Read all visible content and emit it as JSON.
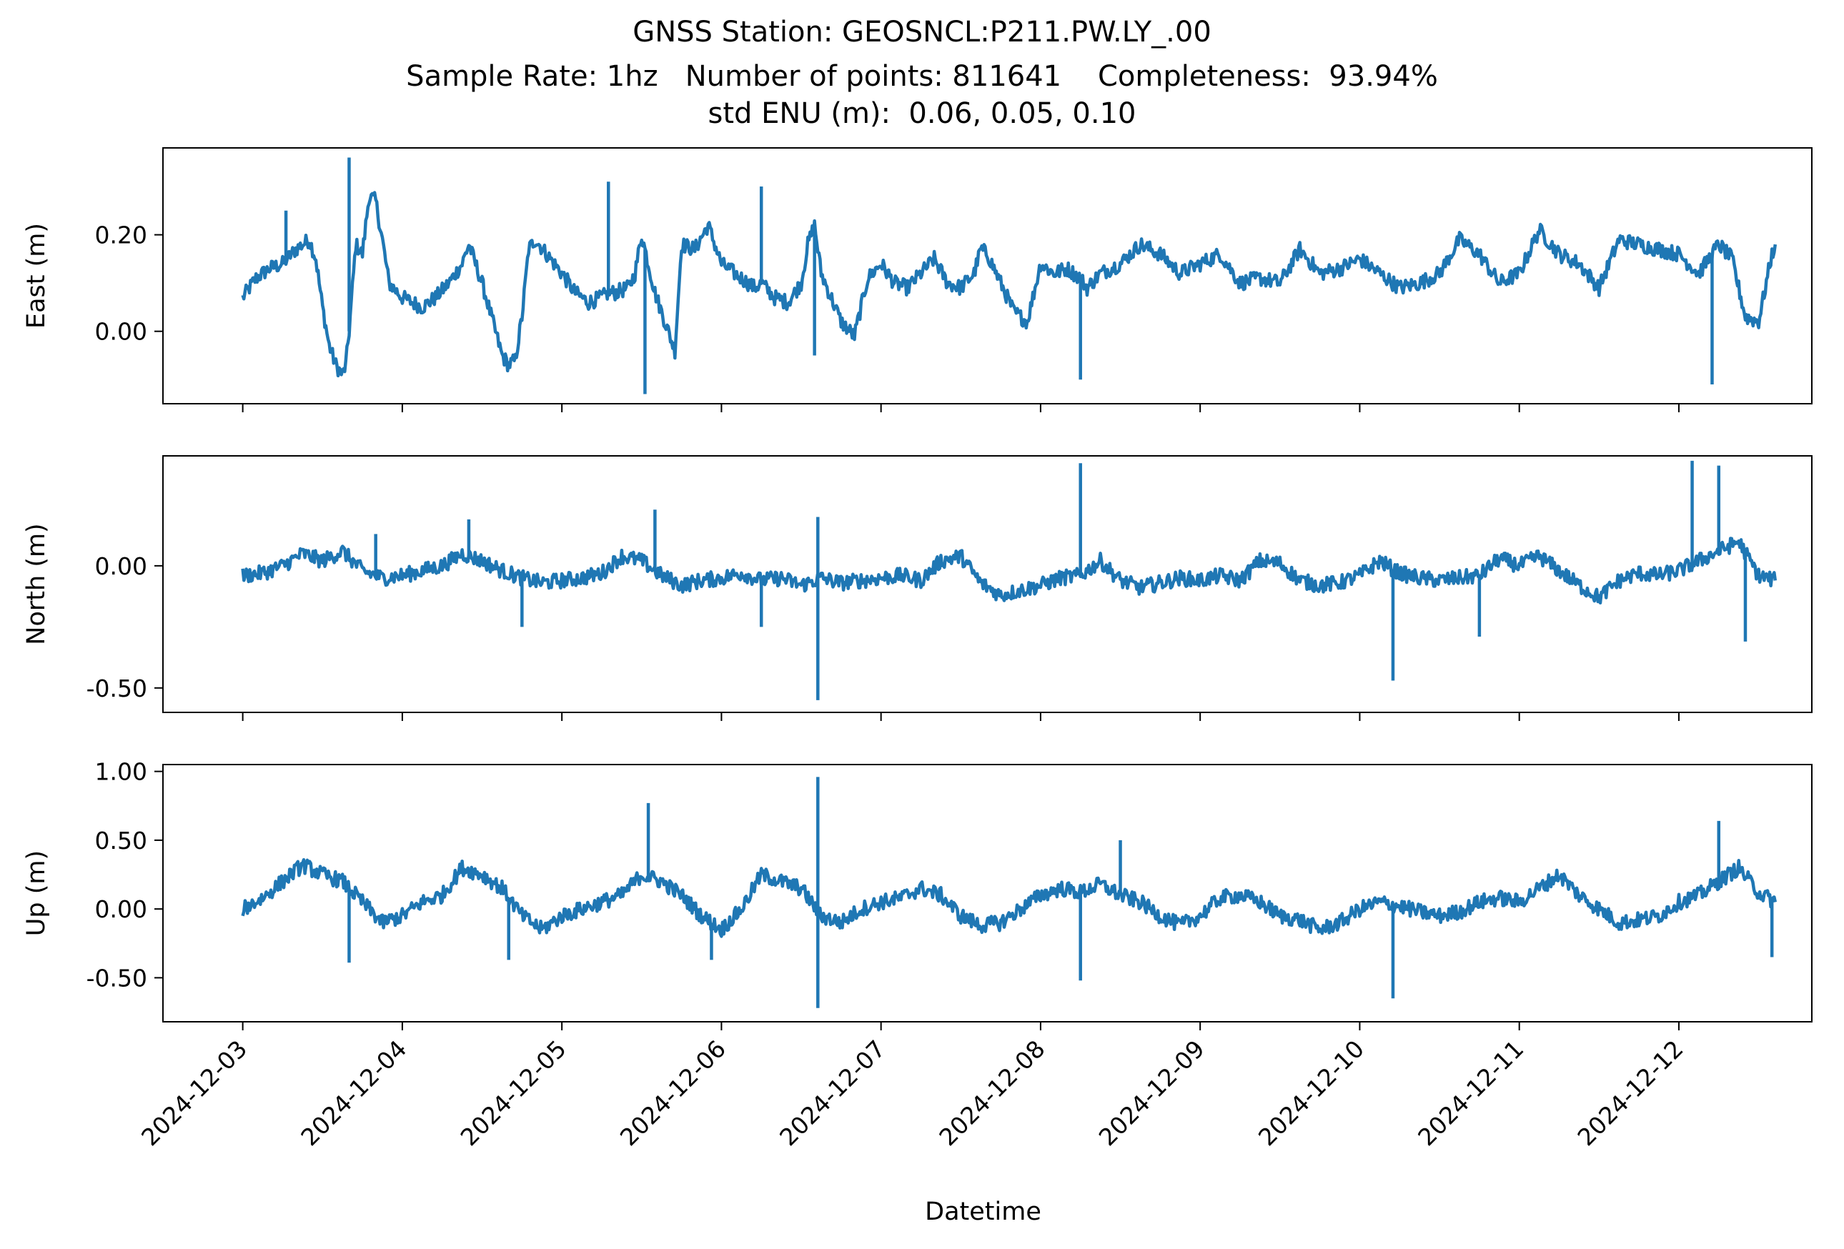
{
  "figure": {
    "title_lines": [
      "GNSS Station: GEOSNCL:P211.PW.LY_.00",
      "Sample Rate: 1hz   Number of points: 811641    Completeness:  93.94%",
      "std ENU (m):  0.06, 0.05, 0.10"
    ],
    "xlabel": "Datetime",
    "line_color": "#1f77b4"
  },
  "chart_data": {
    "type": "line",
    "x_label": "Datetime",
    "x_ticks": [
      "2024-12-03",
      "2024-12-04",
      "2024-12-05",
      "2024-12-06",
      "2024-12-07",
      "2024-12-08",
      "2024-12-09",
      "2024-12-10",
      "2024-12-11",
      "2024-12-12"
    ],
    "xlim": [
      "2024-12-02T12:00",
      "2024-12-12T20:00"
    ],
    "data_range": [
      "2024-12-03T00:00",
      "2024-12-12T14:30"
    ],
    "panels": [
      {
        "ylabel": "East (m)",
        "ylim": [
          -0.15,
          0.38
        ],
        "yticks": [
          0.0,
          0.2
        ],
        "ytick_labels": [
          "0.00",
          "0.20"
        ],
        "series": [
          {
            "x": [
              "2024-12-03T00:00",
              "2024-12-03T02:00",
              "2024-12-03T04:00",
              "2024-12-03T06:00",
              "2024-12-03T08:00",
              "2024-12-03T10:00",
              "2024-12-03T11:00",
              "2024-12-03T12:00",
              "2024-12-03T13:00",
              "2024-12-03T14:00",
              "2024-12-03T15:00",
              "2024-12-03T15:30",
              "2024-12-03T16:00",
              "2024-12-03T17:00",
              "2024-12-03T18:00",
              "2024-12-03T19:00",
              "2024-12-03T20:00",
              "2024-12-03T21:00",
              "2024-12-03T22:00",
              "2024-12-04T00:00",
              "2024-12-04T03:00",
              "2024-12-04T05:00",
              "2024-12-04T07:00",
              "2024-12-04T09:00",
              "2024-12-04T10:00",
              "2024-12-04T12:00",
              "2024-12-04T14:00",
              "2024-12-04T15:00",
              "2024-12-04T16:00",
              "2024-12-04T17:00",
              "2024-12-04T18:00",
              "2024-12-04T19:00",
              "2024-12-04T20:00",
              "2024-12-05T00:00",
              "2024-12-05T02:00",
              "2024-12-05T04:00",
              "2024-12-05T06:00",
              "2024-12-05T07:00",
              "2024-12-05T08:00",
              "2024-12-05T10:00",
              "2024-12-05T11:00",
              "2024-12-05T12:00",
              "2024-12-05T13:00",
              "2024-12-05T14:00",
              "2024-12-05T15:00",
              "2024-12-05T16:00",
              "2024-12-05T17:00",
              "2024-12-05T18:00",
              "2024-12-05T20:00",
              "2024-12-05T22:00",
              "2024-12-06T00:00",
              "2024-12-06T03:00",
              "2024-12-06T05:00",
              "2024-12-06T06:00",
              "2024-12-06T08:00",
              "2024-12-06T10:00",
              "2024-12-06T12:00",
              "2024-12-06T13:00",
              "2024-12-06T14:00",
              "2024-12-06T15:00",
              "2024-12-06T18:00",
              "2024-12-06T20:00",
              "2024-12-06T22:00",
              "2024-12-07T00:00",
              "2024-12-07T02:00",
              "2024-12-07T04:00",
              "2024-12-07T06:00",
              "2024-12-07T08:00",
              "2024-12-07T10:00",
              "2024-12-07T12:00",
              "2024-12-07T14:00",
              "2024-12-07T15:00",
              "2024-12-07T16:00",
              "2024-12-07T18:00",
              "2024-12-07T20:00",
              "2024-12-07T22:00",
              "2024-12-08T00:00",
              "2024-12-08T02:00",
              "2024-12-08T04:00",
              "2024-12-08T06:00",
              "2024-12-08T07:00",
              "2024-12-08T09:00",
              "2024-12-08T12:00",
              "2024-12-08T15:00",
              "2024-12-08T18:00",
              "2024-12-08T21:00",
              "2024-12-09T00:00",
              "2024-12-09T03:00",
              "2024-12-09T06:00",
              "2024-12-09T09:00",
              "2024-12-09T12:00",
              "2024-12-09T15:00",
              "2024-12-09T18:00",
              "2024-12-09T21:00",
              "2024-12-10T00:00",
              "2024-12-10T03:00",
              "2024-12-10T06:00",
              "2024-12-10T09:00",
              "2024-12-10T12:00",
              "2024-12-10T15:00",
              "2024-12-10T18:00",
              "2024-12-10T21:00",
              "2024-12-11T00:00",
              "2024-12-11T03:00",
              "2024-12-11T06:00",
              "2024-12-11T09:00",
              "2024-12-11T12:00",
              "2024-12-11T15:00",
              "2024-12-11T18:00",
              "2024-12-11T21:00",
              "2024-12-12T00:00",
              "2024-12-12T03:00",
              "2024-12-12T06:00",
              "2024-12-12T08:00",
              "2024-12-12T10:00",
              "2024-12-12T12:00",
              "2024-12-12T14:00",
              "2024-12-12T14:30"
            ],
            "y": [
              0.07,
              0.11,
              0.13,
              0.14,
              0.17,
              0.19,
              0.15,
              0.05,
              -0.03,
              -0.07,
              -0.09,
              -0.07,
              0.0,
              0.18,
              0.16,
              0.28,
              0.27,
              0.19,
              0.1,
              0.07,
              0.05,
              0.07,
              0.1,
              0.14,
              0.18,
              0.1,
              0.0,
              -0.05,
              -0.07,
              -0.06,
              0.03,
              0.17,
              0.19,
              0.12,
              0.08,
              0.06,
              0.07,
              0.08,
              0.08,
              0.09,
              0.12,
              0.2,
              0.14,
              0.08,
              0.04,
              0.0,
              -0.04,
              0.18,
              0.17,
              0.22,
              0.14,
              0.11,
              0.09,
              0.1,
              0.07,
              0.06,
              0.1,
              0.18,
              0.22,
              0.12,
              0.02,
              -0.01,
              0.11,
              0.14,
              0.1,
              0.09,
              0.12,
              0.15,
              0.1,
              0.09,
              0.12,
              0.17,
              0.16,
              0.1,
              0.04,
              0.02,
              0.14,
              0.12,
              0.13,
              0.11,
              0.09,
              0.12,
              0.14,
              0.18,
              0.16,
              0.12,
              0.14,
              0.16,
              0.1,
              0.11,
              0.1,
              0.17,
              0.12,
              0.13,
              0.15,
              0.12,
              0.09,
              0.1,
              0.12,
              0.19,
              0.16,
              0.1,
              0.12,
              0.21,
              0.16,
              0.14,
              0.09,
              0.19,
              0.18,
              0.17,
              0.16,
              0.12,
              0.18,
              0.15,
              0.03,
              0.02,
              0.16,
              0.18
            ]
          }
        ],
        "spikes": [
          {
            "x": "2024-12-03T06:30",
            "y": 0.25
          },
          {
            "x": "2024-12-03T16:00",
            "y": 0.36
          },
          {
            "x": "2024-12-05T07:00",
            "y": 0.31
          },
          {
            "x": "2024-12-05T12:30",
            "y": -0.13
          },
          {
            "x": "2024-12-06T06:00",
            "y": 0.3
          },
          {
            "x": "2024-12-06T14:00",
            "y": -0.05
          },
          {
            "x": "2024-12-08T06:00",
            "y": -0.1
          },
          {
            "x": "2024-12-12T05:00",
            "y": -0.11
          }
        ]
      },
      {
        "ylabel": "North (m)",
        "ylim": [
          -0.6,
          0.45
        ],
        "yticks": [
          -0.5,
          0.0
        ],
        "ytick_labels": [
          "-0.50",
          "0.00"
        ],
        "series": [
          {
            "x": [
              "2024-12-03T00:00",
              "2024-12-03T03:00",
              "2024-12-03T06:00",
              "2024-12-03T09:00",
              "2024-12-03T12:00",
              "2024-12-03T15:00",
              "2024-12-03T18:00",
              "2024-12-03T21:00",
              "2024-12-04T00:00",
              "2024-12-04T03:00",
              "2024-12-04T06:00",
              "2024-12-04T09:00",
              "2024-12-04T12:00",
              "2024-12-04T15:00",
              "2024-12-04T18:00",
              "2024-12-04T21:00",
              "2024-12-05T00:00",
              "2024-12-05T03:00",
              "2024-12-05T06:00",
              "2024-12-05T09:00",
              "2024-12-05T12:00",
              "2024-12-05T15:00",
              "2024-12-05T18:00",
              "2024-12-05T21:00",
              "2024-12-06T00:00",
              "2024-12-06T03:00",
              "2024-12-06T06:00",
              "2024-12-06T09:00",
              "2024-12-06T12:00",
              "2024-12-06T15:00",
              "2024-12-06T18:00",
              "2024-12-06T21:00",
              "2024-12-07T00:00",
              "2024-12-07T03:00",
              "2024-12-07T06:00",
              "2024-12-07T09:00",
              "2024-12-07T12:00",
              "2024-12-07T15:00",
              "2024-12-07T18:00",
              "2024-12-07T21:00",
              "2024-12-08T00:00",
              "2024-12-08T03:00",
              "2024-12-08T06:00",
              "2024-12-08T09:00",
              "2024-12-08T12:00",
              "2024-12-08T15:00",
              "2024-12-08T18:00",
              "2024-12-08T21:00",
              "2024-12-09T00:00",
              "2024-12-09T03:00",
              "2024-12-09T06:00",
              "2024-12-09T09:00",
              "2024-12-09T12:00",
              "2024-12-09T15:00",
              "2024-12-09T18:00",
              "2024-12-09T21:00",
              "2024-12-10T00:00",
              "2024-12-10T03:00",
              "2024-12-10T06:00",
              "2024-12-10T09:00",
              "2024-12-10T12:00",
              "2024-12-10T15:00",
              "2024-12-10T18:00",
              "2024-12-10T21:00",
              "2024-12-11T00:00",
              "2024-12-11T03:00",
              "2024-12-11T06:00",
              "2024-12-11T09:00",
              "2024-12-11T12:00",
              "2024-12-11T15:00",
              "2024-12-11T18:00",
              "2024-12-11T21:00",
              "2024-12-12T00:00",
              "2024-12-12T03:00",
              "2024-12-12T06:00",
              "2024-12-12T09:00",
              "2024-12-12T12:00",
              "2024-12-12T14:30"
            ],
            "y": [
              -0.04,
              -0.03,
              0.0,
              0.05,
              0.02,
              0.06,
              -0.02,
              -0.05,
              -0.04,
              -0.02,
              0.0,
              0.05,
              0.02,
              -0.02,
              -0.05,
              -0.07,
              -0.06,
              -0.05,
              -0.03,
              0.04,
              0.02,
              -0.04,
              -0.08,
              -0.06,
              -0.05,
              -0.03,
              -0.06,
              -0.05,
              -0.08,
              -0.05,
              -0.07,
              -0.06,
              -0.05,
              -0.04,
              -0.06,
              0.02,
              0.04,
              -0.07,
              -0.12,
              -0.1,
              -0.08,
              -0.05,
              -0.04,
              0.02,
              -0.06,
              -0.09,
              -0.07,
              -0.05,
              -0.06,
              -0.04,
              -0.06,
              0.02,
              0.01,
              -0.06,
              -0.08,
              -0.07,
              -0.04,
              0.02,
              -0.03,
              -0.05,
              -0.06,
              -0.05,
              -0.04,
              0.03,
              0.0,
              0.04,
              -0.02,
              -0.08,
              -0.13,
              -0.06,
              -0.03,
              -0.04,
              -0.02,
              0.02,
              0.06,
              0.1,
              -0.04,
              -0.06
            ]
          }
        ],
        "spikes": [
          {
            "x": "2024-12-03T20:00",
            "y": 0.13
          },
          {
            "x": "2024-12-04T10:00",
            "y": 0.19
          },
          {
            "x": "2024-12-04T18:00",
            "y": -0.25
          },
          {
            "x": "2024-12-05T14:00",
            "y": 0.23
          },
          {
            "x": "2024-12-06T06:00",
            "y": -0.25
          },
          {
            "x": "2024-12-06T14:30",
            "y": -0.55
          },
          {
            "x": "2024-12-06T14:30",
            "y": 0.2
          },
          {
            "x": "2024-12-08T06:00",
            "y": 0.42
          },
          {
            "x": "2024-12-10T05:00",
            "y": -0.47
          },
          {
            "x": "2024-12-10T18:00",
            "y": -0.29
          },
          {
            "x": "2024-12-12T02:00",
            "y": 0.43
          },
          {
            "x": "2024-12-12T06:00",
            "y": 0.41
          },
          {
            "x": "2024-12-12T10:00",
            "y": -0.31
          }
        ]
      },
      {
        "ylabel": "Up (m)",
        "ylim": [
          -0.82,
          1.05
        ],
        "yticks": [
          -0.5,
          0.0,
          0.5,
          1.0
        ],
        "ytick_labels": [
          "-0.50",
          "0.00",
          "0.50",
          "1.00"
        ],
        "series": [
          {
            "x": [
              "2024-12-03T00:00",
              "2024-12-03T03:00",
              "2024-12-03T06:00",
              "2024-12-03T09:00",
              "2024-12-03T12:00",
              "2024-12-03T15:00",
              "2024-12-03T18:00",
              "2024-12-03T21:00",
              "2024-12-04T00:00",
              "2024-12-04T03:00",
              "2024-12-04T06:00",
              "2024-12-04T09:00",
              "2024-12-04T12:00",
              "2024-12-04T15:00",
              "2024-12-04T18:00",
              "2024-12-04T21:00",
              "2024-12-05T00:00",
              "2024-12-05T03:00",
              "2024-12-05T06:00",
              "2024-12-05T09:00",
              "2024-12-05T12:00",
              "2024-12-05T15:00",
              "2024-12-05T18:00",
              "2024-12-05T21:00",
              "2024-12-06T00:00",
              "2024-12-06T03:00",
              "2024-12-06T06:00",
              "2024-12-06T09:00",
              "2024-12-06T12:00",
              "2024-12-06T15:00",
              "2024-12-06T18:00",
              "2024-12-06T21:00",
              "2024-12-07T00:00",
              "2024-12-07T03:00",
              "2024-12-07T06:00",
              "2024-12-07T09:00",
              "2024-12-07T12:00",
              "2024-12-07T15:00",
              "2024-12-07T18:00",
              "2024-12-07T21:00",
              "2024-12-08T00:00",
              "2024-12-08T03:00",
              "2024-12-08T06:00",
              "2024-12-08T09:00",
              "2024-12-08T12:00",
              "2024-12-08T15:00",
              "2024-12-08T18:00",
              "2024-12-08T21:00",
              "2024-12-09T00:00",
              "2024-12-09T03:00",
              "2024-12-09T06:00",
              "2024-12-09T09:00",
              "2024-12-09T12:00",
              "2024-12-09T15:00",
              "2024-12-09T18:00",
              "2024-12-09T21:00",
              "2024-12-10T00:00",
              "2024-12-10T03:00",
              "2024-12-10T06:00",
              "2024-12-10T09:00",
              "2024-12-10T12:00",
              "2024-12-10T15:00",
              "2024-12-10T18:00",
              "2024-12-10T21:00",
              "2024-12-11T00:00",
              "2024-12-11T03:00",
              "2024-12-11T06:00",
              "2024-12-11T09:00",
              "2024-12-11T12:00",
              "2024-12-11T15:00",
              "2024-12-11T18:00",
              "2024-12-11T21:00",
              "2024-12-12T00:00",
              "2024-12-12T03:00",
              "2024-12-12T06:00",
              "2024-12-12T09:00",
              "2024-12-12T12:00",
              "2024-12-12T14:30"
            ],
            "y": [
              0.0,
              0.08,
              0.2,
              0.32,
              0.25,
              0.2,
              0.05,
              -0.1,
              -0.05,
              0.05,
              0.1,
              0.3,
              0.25,
              0.15,
              -0.05,
              -0.15,
              -0.05,
              0.0,
              0.05,
              0.1,
              0.25,
              0.2,
              0.1,
              -0.05,
              -0.15,
              0.0,
              0.25,
              0.2,
              0.15,
              -0.05,
              -0.1,
              0.0,
              0.05,
              0.08,
              0.15,
              0.1,
              -0.05,
              -0.12,
              -0.1,
              0.0,
              0.1,
              0.15,
              0.12,
              0.18,
              0.1,
              0.05,
              -0.05,
              -0.12,
              -0.05,
              0.08,
              0.1,
              0.05,
              -0.05,
              -0.08,
              -0.15,
              -0.1,
              0.0,
              0.05,
              0.02,
              -0.02,
              -0.05,
              -0.02,
              0.05,
              0.08,
              0.05,
              0.15,
              0.25,
              0.1,
              0.0,
              -0.1,
              -0.08,
              -0.05,
              0.05,
              0.1,
              0.2,
              0.3,
              0.12,
              0.05
            ]
          }
        ],
        "spikes": [
          {
            "x": "2024-12-03T16:00",
            "y": -0.39
          },
          {
            "x": "2024-12-04T16:00",
            "y": -0.37
          },
          {
            "x": "2024-12-05T13:00",
            "y": 0.77
          },
          {
            "x": "2024-12-05T22:30",
            "y": -0.37
          },
          {
            "x": "2024-12-06T14:30",
            "y": 0.96
          },
          {
            "x": "2024-12-06T14:30",
            "y": -0.72
          },
          {
            "x": "2024-12-08T06:00",
            "y": -0.52
          },
          {
            "x": "2024-12-08T12:00",
            "y": 0.5
          },
          {
            "x": "2024-12-10T05:00",
            "y": -0.65
          },
          {
            "x": "2024-12-12T06:00",
            "y": 0.64
          },
          {
            "x": "2024-12-12T14:00",
            "y": -0.35
          }
        ]
      }
    ]
  }
}
